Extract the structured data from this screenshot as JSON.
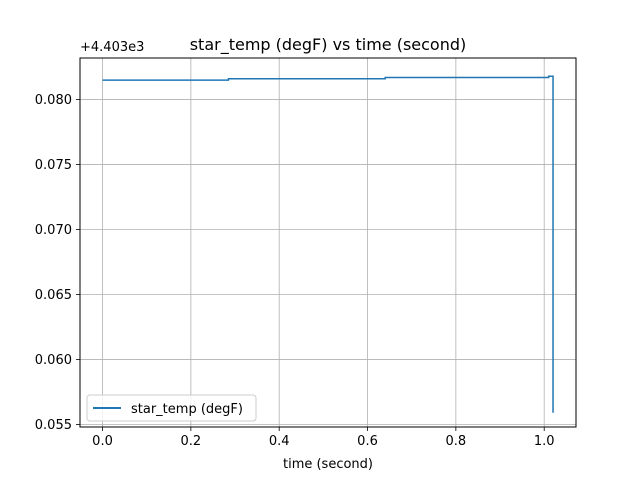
{
  "chart_data": {
    "type": "line",
    "title": "star_temp (degF) vs time (second)",
    "xlabel": "time (second)",
    "ylabel": "",
    "offset_text": "+4.403e3",
    "offset_value": 4403,
    "xlim": [
      -0.051,
      1.072
    ],
    "ylim": [
      0.0548,
      0.0832
    ],
    "xticks": [
      0.0,
      0.2,
      0.4,
      0.6,
      0.8,
      1.0
    ],
    "xtick_labels": [
      "0.0",
      "0.2",
      "0.4",
      "0.6",
      "0.8",
      "1.0"
    ],
    "yticks": [
      0.055,
      0.06,
      0.065,
      0.07,
      0.075,
      0.08
    ],
    "ytick_labels": [
      "0.055",
      "0.060",
      "0.065",
      "0.070",
      "0.075",
      "0.080"
    ],
    "grid": true,
    "legend_position": "lower-left",
    "series": [
      {
        "name": "star_temp (degF)",
        "color": "#1f77b4",
        "x": [
          0.0,
          0.285,
          0.285,
          0.64,
          0.64,
          1.01,
          1.01,
          1.02,
          1.02
        ],
        "y": [
          0.0815,
          0.0815,
          0.0816,
          0.0816,
          0.0817,
          0.0817,
          0.0818,
          0.0818,
          0.0559
        ]
      }
    ]
  }
}
